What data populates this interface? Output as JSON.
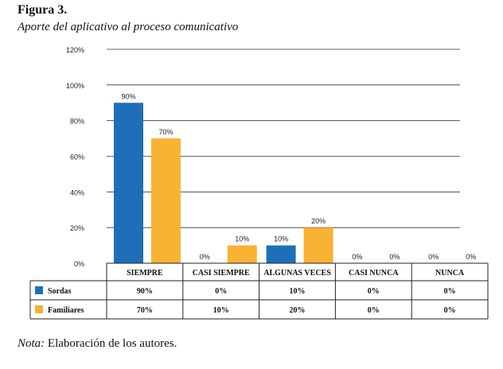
{
  "figure": {
    "label": "Figura 3.",
    "caption": "Aporte del aplicativo al proceso comunicativo",
    "note_prefix": "Nota:",
    "note_text": " Elaboración de los autores."
  },
  "chart_data": {
    "type": "bar",
    "categories": [
      "SIEMPRE",
      "CASI SIEMPRE",
      "ALGUNAS VECES",
      "CASI NUNCA",
      "NUNCA"
    ],
    "series": [
      {
        "name": "Sordas",
        "values": [
          90,
          0,
          10,
          0,
          0
        ],
        "color": "#1f6fb8"
      },
      {
        "name": "Familiares",
        "values": [
          70,
          10,
          20,
          0,
          0
        ],
        "color": "#f9b233"
      }
    ],
    "data_labels": [
      [
        "90%",
        "0%",
        "10%",
        "0%",
        "0%"
      ],
      [
        "70%",
        "10%",
        "20%",
        "0%",
        "0%"
      ]
    ],
    "y_ticks": [
      "0%",
      "20%",
      "40%",
      "60%",
      "80%",
      "100%",
      "120%"
    ],
    "ylim": [
      0,
      120
    ],
    "grid": true,
    "legend": "data-table-below",
    "table": {
      "rows": [
        {
          "label": "Sordas",
          "cells": [
            "90%",
            "0%",
            "10%",
            "0%",
            "0%"
          ]
        },
        {
          "label": "Familiares",
          "cells": [
            "70%",
            "10%",
            "20%",
            "0%",
            "0%"
          ]
        }
      ]
    }
  }
}
